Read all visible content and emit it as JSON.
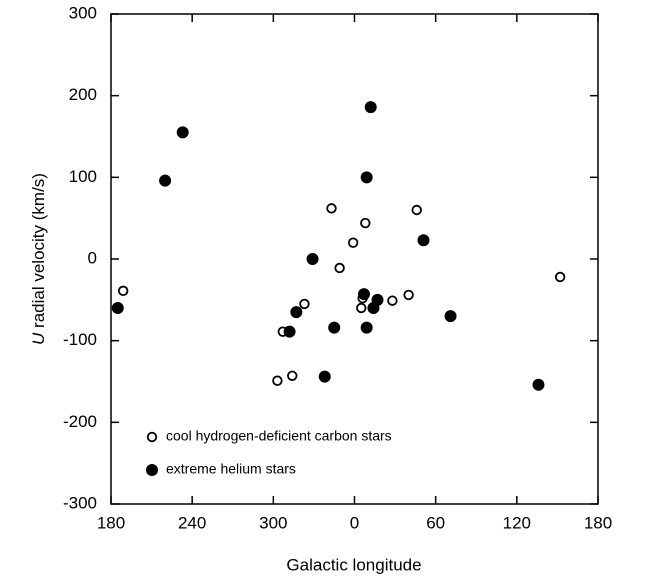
{
  "chart_data": {
    "type": "scatter",
    "x_label": "Galactic longitude",
    "y_label_var": "U",
    "y_label": "radial velocity (km/s)",
    "xlim": [
      -180,
      180
    ],
    "xticks": [
      {
        "value": -180,
        "label": "180"
      },
      {
        "value": -120,
        "label": "240"
      },
      {
        "value": -60,
        "label": "300"
      },
      0,
      60,
      120,
      180
    ],
    "ylim": [
      -300,
      300
    ],
    "yticks": [
      -300,
      -200,
      -100,
      0,
      100,
      200,
      300
    ],
    "legend": "lower left",
    "series": [
      {
        "name": "cool hydrogen-deficient carbon stars",
        "color": "#000000",
        "marker": "open",
        "x": [
          -171,
          -53,
          -37,
          -57,
          -46,
          -17,
          -11,
          -1,
          8,
          6,
          5,
          28,
          40,
          46,
          152
        ],
        "values": [
          -39,
          -89,
          -55,
          -149,
          -143,
          62,
          -11,
          20,
          44,
          -48,
          -60,
          -51,
          -44,
          60,
          -22
        ]
      },
      {
        "name": "extreme helium stars",
        "color": "#000000",
        "marker": "filled",
        "x": [
          -175,
          -140,
          -127,
          -43,
          -48,
          -31,
          -15,
          -22,
          12,
          9,
          7,
          17,
          14,
          9,
          51,
          71,
          136
        ],
        "values": [
          -60,
          96,
          155,
          -65,
          -89,
          0,
          -84,
          -144,
          186,
          100,
          -43,
          -50,
          -60,
          -84,
          23,
          -70,
          -154
        ]
      }
    ]
  }
}
